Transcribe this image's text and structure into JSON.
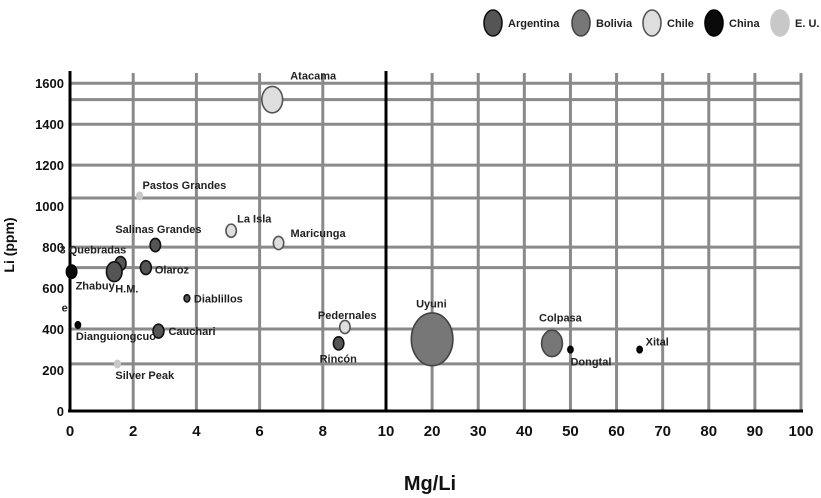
{
  "chart_data": {
    "type": "scatter",
    "title": "",
    "xlabel": "Mg/Li",
    "ylabel": "Li (ppm)",
    "x_axis": {
      "segments": [
        {
          "range": [
            0,
            10
          ],
          "ticks": [
            0,
            2,
            4,
            6,
            8,
            10
          ]
        },
        {
          "range": [
            10,
            100
          ],
          "ticks": [
            20,
            30,
            40,
            50,
            60,
            70,
            80,
            90,
            100
          ]
        }
      ],
      "tick_labels": [
        "0",
        "2",
        "4",
        "6",
        "8",
        "10",
        "20",
        "30",
        "40",
        "50",
        "60",
        "70",
        "80",
        "90",
        "100"
      ]
    },
    "ylim": [
      0,
      1650
    ],
    "y_ticks": [
      0,
      200,
      400,
      600,
      800,
      1000,
      1200,
      1400,
      1600
    ],
    "grid": true,
    "legend_position": "top-right",
    "series": [
      {
        "name": "Argentina",
        "color": "#555555",
        "stroke": "#111111"
      },
      {
        "name": "Bolivia",
        "color": "#777777",
        "stroke": "#444444"
      },
      {
        "name": "Chile",
        "color": "#dedede",
        "stroke": "#555555"
      },
      {
        "name": "China",
        "color": "#0a0a0a",
        "stroke": "#000000"
      },
      {
        "name": "E. U.",
        "color": "#c8c8c8",
        "stroke": "#c8c8c8"
      }
    ],
    "points": [
      {
        "label": "Atacama",
        "series": "Chile",
        "x": 6.4,
        "y": 1520,
        "size": 2.0
      },
      {
        "label": "Pastos Grandes",
        "series": "E. U.",
        "x": 2.2,
        "y": 1050,
        "size": 0.55
      },
      {
        "label": "La Isla",
        "series": "Chile",
        "x": 5.1,
        "y": 880,
        "size": 1.0
      },
      {
        "label": "Maricunga",
        "series": "Chile",
        "x": 6.6,
        "y": 820,
        "size": 1.0
      },
      {
        "label": "Salinas Grandes",
        "series": "Argentina",
        "x": 2.7,
        "y": 810,
        "size": 1.0
      },
      {
        "label": "3 Quebradas",
        "series": "Argentina",
        "x": 1.6,
        "y": 720,
        "size": 1.05
      },
      {
        "label": "H.M.",
        "series": "Argentina",
        "x": 1.4,
        "y": 680,
        "size": 1.5
      },
      {
        "label": "Olaroz",
        "series": "Argentina",
        "x": 2.4,
        "y": 700,
        "size": 1.05
      },
      {
        "label": "Zhabuye",
        "series": "China",
        "x": 0.05,
        "y": 680,
        "size": 1.0
      },
      {
        "label": "Diablillos",
        "series": "Argentina",
        "x": 3.7,
        "y": 550,
        "size": 0.55
      },
      {
        "label": "Pedernales",
        "series": "Chile",
        "x": 8.7,
        "y": 410,
        "size": 1.0
      },
      {
        "label": "Rincón",
        "series": "Argentina",
        "x": 8.5,
        "y": 330,
        "size": 1.0
      },
      {
        "label": "Cauchari",
        "series": "Argentina",
        "x": 2.8,
        "y": 390,
        "size": 1.05
      },
      {
        "label": "Dianguiongcuo",
        "series": "China",
        "x": 0.25,
        "y": 420,
        "size": 0.5
      },
      {
        "label": "Silver Peak",
        "series": "E. U.",
        "x": 1.5,
        "y": 230,
        "size": 0.55
      },
      {
        "label": "Uyuni",
        "series": "Bolivia",
        "x": 20,
        "y": 350,
        "size": 4.0
      },
      {
        "label": "Colpasa",
        "series": "Bolivia",
        "x": 46,
        "y": 330,
        "size": 2.0
      },
      {
        "label": "Dongtai",
        "series": "China",
        "x": 50,
        "y": 300,
        "size": 0.5
      },
      {
        "label": "Xitai",
        "series": "China",
        "x": 65,
        "y": 300,
        "size": 0.5
      }
    ],
    "point_labels_display": {
      "Atacama": "Atacama",
      "Pastos Grandes": "Pastos Grandes",
      "La Isla": "La Isla",
      "Maricunga": "Maricunga",
      "Salinas Grandes": "Salinas Grandes",
      "3 Quebradas": "3 Quebradas",
      "H.M.": "H.M.",
      "Olaroz": "Olaroz",
      "Zhabuye": [
        "Zhabuy",
        "e"
      ],
      "Diablillos": "Diablillos",
      "Pedernales": "Pedernales",
      "Rincón": "Rincón",
      "Cauchari": "Cauchari",
      "Dianguiongcuo": "Dianguiongcuo",
      "Silver Peak": "Silver Peak",
      "Uyuni": "Uyuni",
      "Colpasa": "Colpasa",
      "Dongtai": "Dongtal",
      "Xitai": "Xital"
    }
  }
}
